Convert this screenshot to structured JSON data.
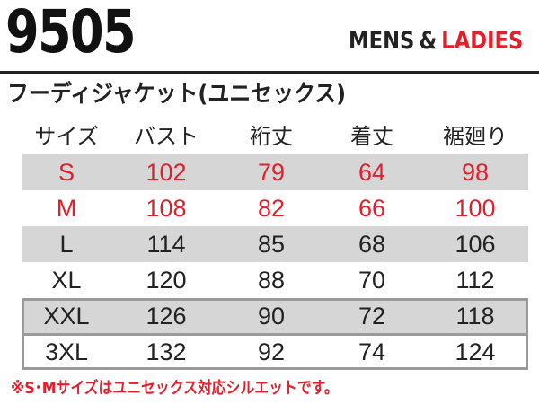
{
  "header": {
    "model_number": "9505",
    "gender_mens": "MENS",
    "gender_amp": "&",
    "gender_ladies": "LADIES",
    "product_name": "フーディジャケット(ユニセックス)"
  },
  "size_table": {
    "columns": [
      "サイズ",
      "バスト",
      "裄丈",
      "着丈",
      "裾廻り"
    ],
    "rows": [
      [
        "S",
        "102",
        "79",
        "64",
        "98"
      ],
      [
        "M",
        "108",
        "82",
        "66",
        "100"
      ],
      [
        "L",
        "114",
        "85",
        "68",
        "106"
      ],
      [
        "XL",
        "120",
        "88",
        "70",
        "112"
      ],
      [
        "XXL",
        "126",
        "90",
        "72",
        "118"
      ],
      [
        "3XL",
        "132",
        "92",
        "74",
        "124"
      ]
    ]
  },
  "note": "※S･Mサイズはユニセックス対応シルエットです。",
  "colors": {
    "accent_red": "#e41e2b",
    "row_shade": "#d6d6d6",
    "box_border": "#9a9a9a"
  }
}
